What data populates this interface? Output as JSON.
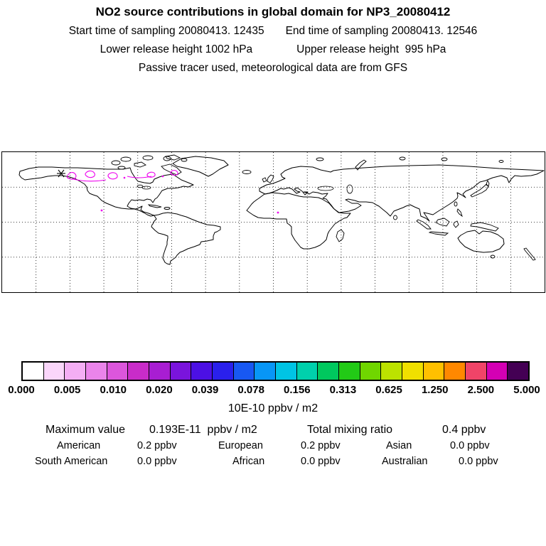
{
  "header": {
    "title": "NO2 source contributions in global domain for NP3_20080412",
    "start_time": "Start time of sampling 20080413. 12435",
    "end_time": "End time of sampling 20080413. 12546",
    "lower_release": "Lower release height 1002 hPa",
    "upper_release": "Upper release height  995 hPa",
    "tracer_note": "Passive tracer used, meteorological data are from GFS"
  },
  "colorbar": {
    "tick_labels": [
      "0.000",
      "0.005",
      "0.010",
      "0.020",
      "0.039",
      "0.078",
      "0.156",
      "0.313",
      "0.625",
      "1.250",
      "2.500",
      "5.000"
    ],
    "segment_colors": [
      "#ffffff",
      "#fad6fa",
      "#f4aef4",
      "#ea84ea",
      "#dc56dc",
      "#c92cc9",
      "#a81ed2",
      "#7a14dc",
      "#4c10e4",
      "#2a20ec",
      "#1858f2",
      "#0896f6",
      "#00c4e4",
      "#00d0ac",
      "#00c85e",
      "#22ca16",
      "#70d600",
      "#bce200",
      "#f0e000",
      "#ffc000",
      "#ff8800",
      "#f04468",
      "#d400b4",
      "#440054"
    ],
    "units": "10E-10 ppbv / m2"
  },
  "stats": {
    "summary": {
      "max_label": "Maximum value",
      "max_value": "0.193E-11  ppbv / m2",
      "total_label": "Total mixing ratio",
      "total_value": "0.4 ppbv"
    },
    "regions": [
      {
        "label": "American",
        "value": "0.2 ppbv"
      },
      {
        "label": "European",
        "value": "0.2 ppbv"
      },
      {
        "label": "Asian",
        "value": "0.0 ppbv"
      },
      {
        "label": "South American",
        "value": "0.0 ppbv"
      },
      {
        "label": "African",
        "value": "0.0 ppbv"
      },
      {
        "label": "Australian",
        "value": "0.0 ppbv"
      }
    ]
  },
  "colors": {
    "plume": "#ee00ee",
    "coastline": "#000000",
    "grid": "#000000",
    "background": "#ffffff"
  },
  "chart_data": {
    "type": "heatmap",
    "title": "NO2 source contributions in global domain for NP3_20080412",
    "projection": "equirectangular",
    "map_extent": {
      "lon": [
        -180,
        180
      ],
      "lat": [
        -90,
        90
      ]
    },
    "grid": true,
    "grid_lon_step_deg": 22.5,
    "grid_lat_step_deg": 45,
    "colorbar_scale": [
      0.0,
      0.005,
      0.01,
      0.02,
      0.039,
      0.078,
      0.156,
      0.313,
      0.625,
      1.25,
      2.5,
      5.0
    ],
    "colorbar_units": "10E-10 ppbv / m2",
    "maximum_value": "0.193E-11 ppbv / m2",
    "total_mixing_ratio_ppbv": 0.4,
    "source_contributions_ppbv": {
      "American": 0.2,
      "European": 0.2,
      "Asian": 0.0,
      "South American": 0.0,
      "African": 0.0,
      "Australian": 0.0
    }
  }
}
